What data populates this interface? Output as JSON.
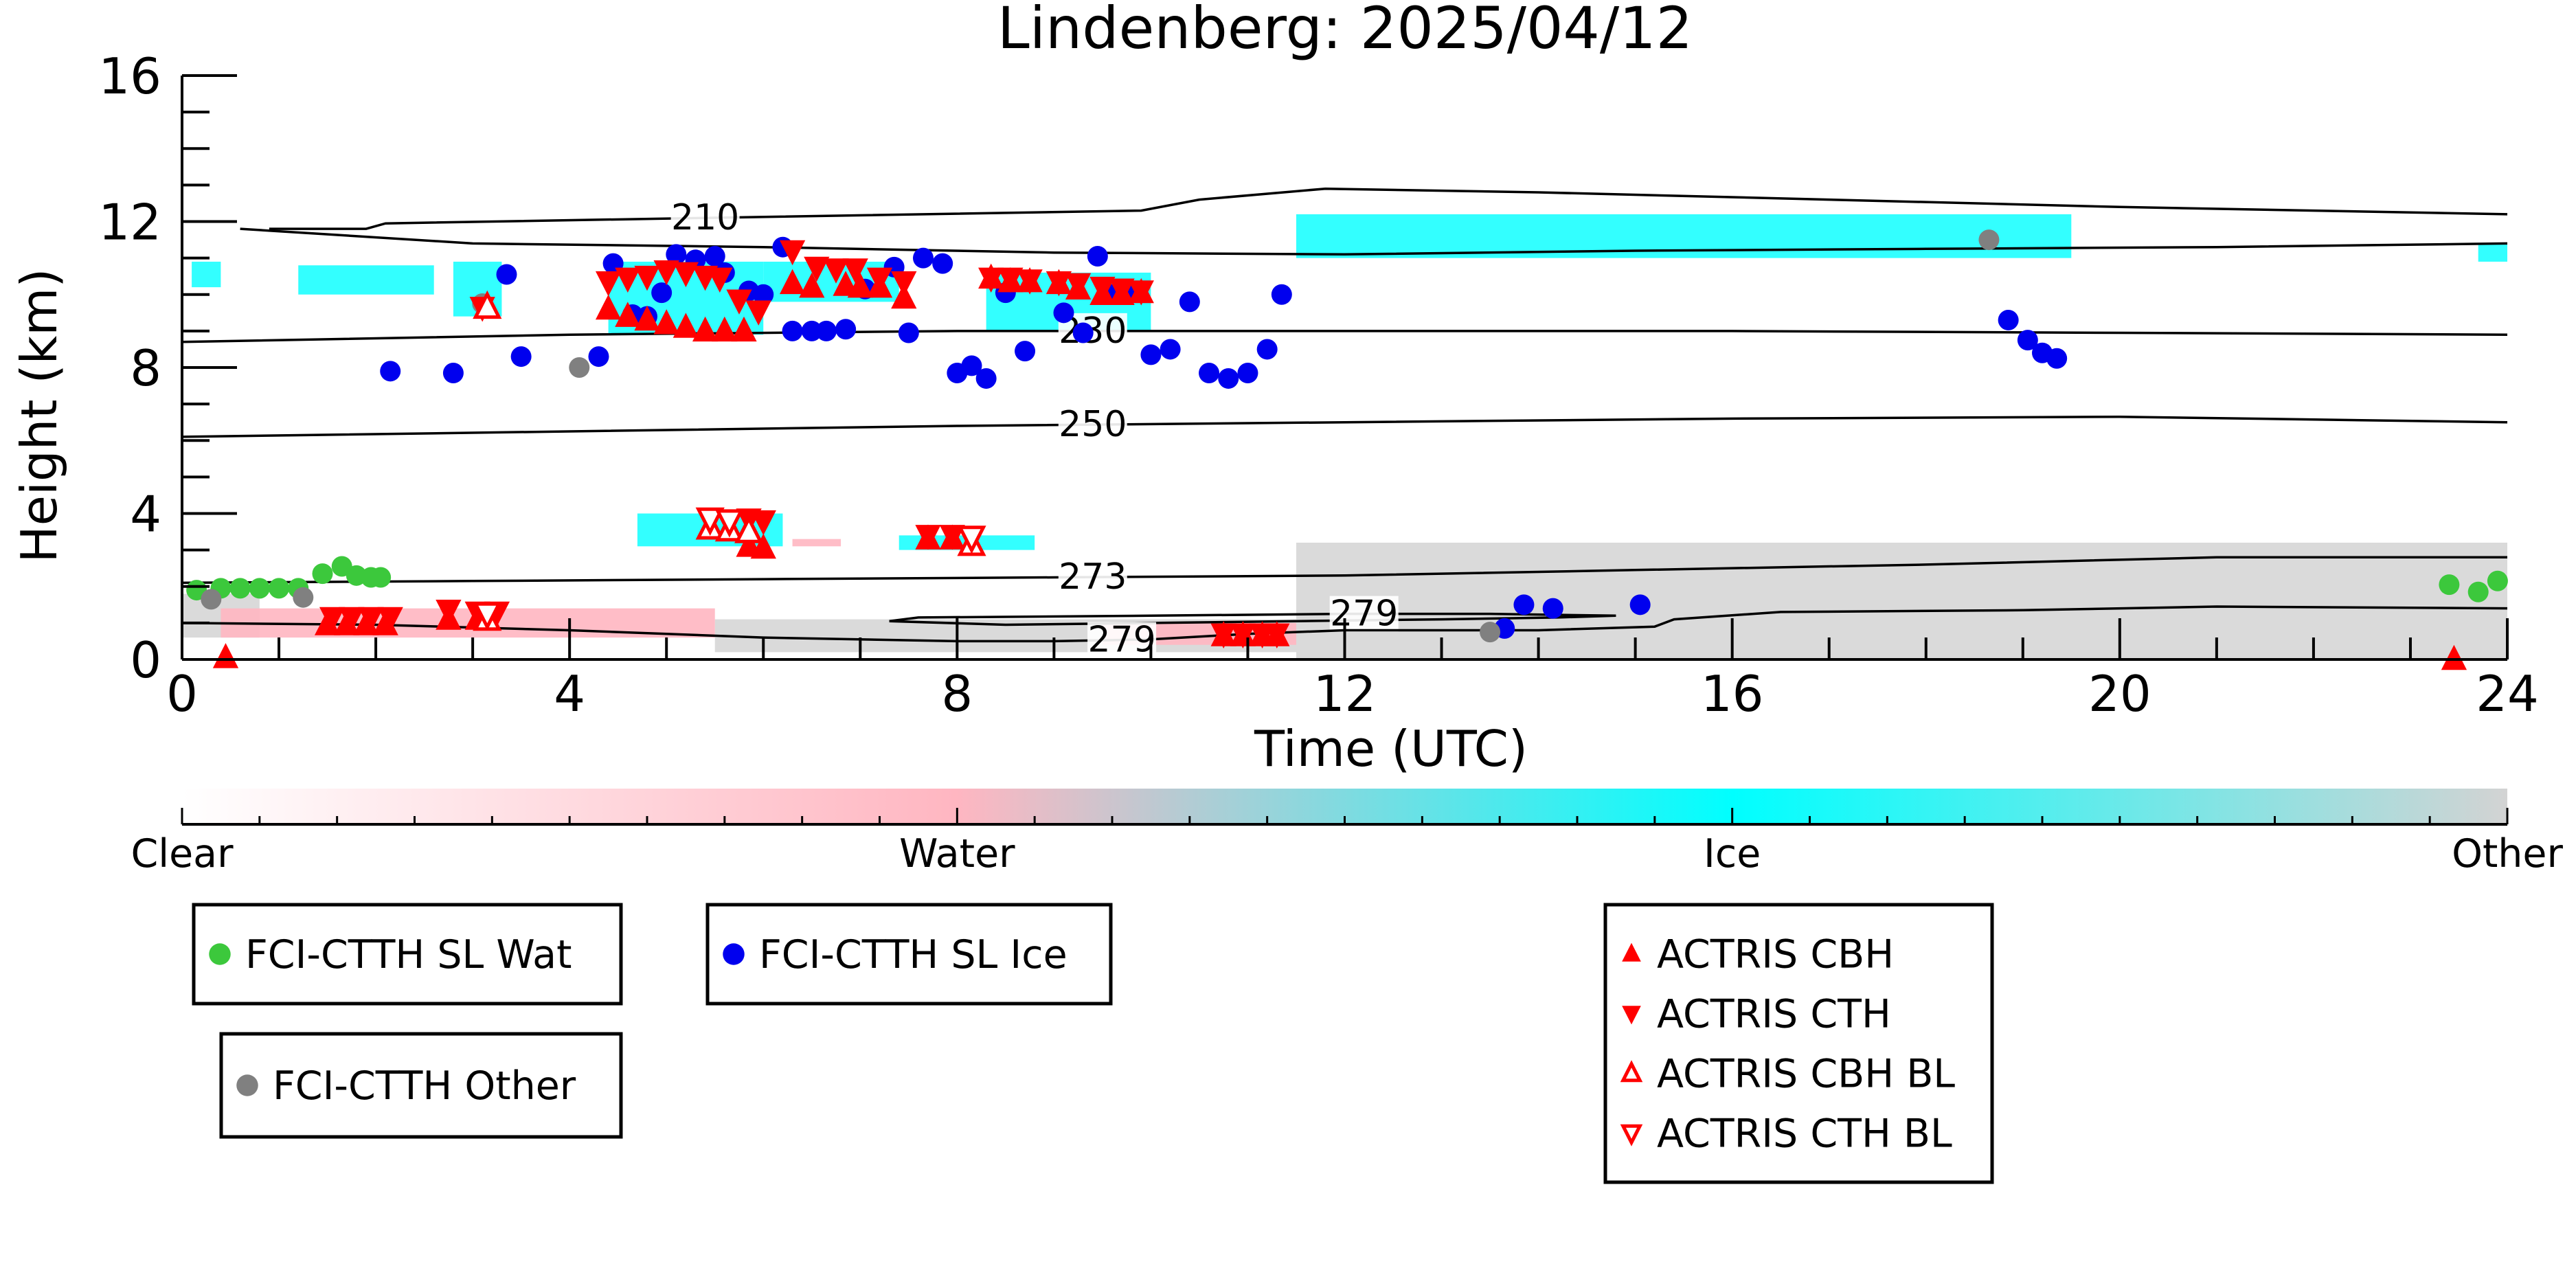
{
  "chart_data": {
    "type": "scatter",
    "title": "Lindenberg: 2025/04/12",
    "xlabel": "Time (UTC)",
    "ylabel": "Height (km)",
    "xlim": [
      0,
      24
    ],
    "ylim": [
      0,
      16
    ],
    "x_ticks": [
      "0",
      "4",
      "8",
      "12",
      "16",
      "20",
      "24"
    ],
    "y_ticks": [
      "0",
      "4",
      "8",
      "12",
      "16"
    ],
    "background": {
      "description_colors": {
        "water": "#ffb6c1",
        "ice": "#00ffff",
        "other": "#d3d3d3"
      },
      "ice_patches": [
        {
          "x0": 0.1,
          "x1": 0.4,
          "y0": 10.2,
          "y1": 10.9
        },
        {
          "x0": 1.2,
          "x1": 2.6,
          "y0": 10.0,
          "y1": 10.8
        },
        {
          "x0": 2.8,
          "x1": 3.3,
          "y0": 9.4,
          "y1": 10.9
        },
        {
          "x0": 4.4,
          "x1": 6.0,
          "y0": 8.9,
          "y1": 10.9
        },
        {
          "x0": 6.0,
          "x1": 7.4,
          "y0": 9.8,
          "y1": 10.9
        },
        {
          "x0": 8.3,
          "x1": 10.0,
          "y0": 9.0,
          "y1": 10.6
        },
        {
          "x0": 11.5,
          "x1": 19.5,
          "y0": 11.0,
          "y1": 12.2
        },
        {
          "x0": 23.7,
          "x1": 24.0,
          "y0": 10.9,
          "y1": 11.4
        },
        {
          "x0": 4.7,
          "x1": 6.2,
          "y0": 3.1,
          "y1": 4.0
        },
        {
          "x0": 7.4,
          "x1": 8.8,
          "y0": 3.0,
          "y1": 3.4
        }
      ],
      "water_patches": [
        {
          "x0": 0.4,
          "x1": 5.5,
          "y0": 0.6,
          "y1": 1.4
        },
        {
          "x0": 9.5,
          "x1": 11.5,
          "y0": 0.4,
          "y1": 1.0
        },
        {
          "x0": 6.3,
          "x1": 6.8,
          "y0": 3.1,
          "y1": 3.3
        }
      ],
      "other_patches": [
        {
          "x0": 11.5,
          "x1": 24.0,
          "y0": 0.0,
          "y1": 3.2
        },
        {
          "x0": 5.5,
          "x1": 11.5,
          "y0": 0.2,
          "y1": 1.1
        },
        {
          "x0": 0.0,
          "x1": 0.8,
          "y0": 0.6,
          "y1": 1.8
        }
      ]
    },
    "isotherms": [
      {
        "label": "210",
        "label_x": 5.4,
        "points": [
          [
            0.9,
            11.8
          ],
          [
            1.9,
            11.8
          ],
          [
            2.1,
            11.95
          ],
          [
            5.4,
            12.1
          ],
          [
            9.9,
            12.3
          ],
          [
            10.5,
            12.6
          ],
          [
            11.8,
            12.9
          ],
          [
            14,
            12.8
          ],
          [
            17,
            12.6
          ],
          [
            20,
            12.4
          ],
          [
            24,
            12.2
          ]
        ]
      },
      {
        "label": "",
        "points": [
          [
            0.6,
            11.8
          ],
          [
            3.0,
            11.4
          ],
          [
            6,
            11.3
          ],
          [
            9,
            11.15
          ],
          [
            12,
            11.1
          ],
          [
            15,
            11.2
          ],
          [
            18,
            11.25
          ],
          [
            21,
            11.3
          ],
          [
            24,
            11.4
          ]
        ]
      },
      {
        "label": "230",
        "label_x": 9.4,
        "points": [
          [
            0,
            8.7
          ],
          [
            4,
            8.9
          ],
          [
            8,
            9.0
          ],
          [
            12,
            9.0
          ],
          [
            16,
            9.0
          ],
          [
            20,
            8.95
          ],
          [
            24,
            8.9
          ]
        ]
      },
      {
        "label": "250",
        "label_x": 9.4,
        "points": [
          [
            0,
            6.1
          ],
          [
            4,
            6.25
          ],
          [
            8,
            6.4
          ],
          [
            12,
            6.5
          ],
          [
            16,
            6.6
          ],
          [
            20,
            6.65
          ],
          [
            24,
            6.5
          ]
        ]
      },
      {
        "label": "273",
        "label_x": 9.4,
        "points": [
          [
            0,
            2.1
          ],
          [
            3,
            2.15
          ],
          [
            6,
            2.2
          ],
          [
            9,
            2.25
          ],
          [
            12,
            2.3
          ],
          [
            15,
            2.45
          ],
          [
            18,
            2.6
          ],
          [
            21,
            2.8
          ],
          [
            24,
            2.8
          ]
        ]
      },
      {
        "label": "279",
        "label_x": 12.2,
        "points": [
          [
            7.3,
            1.05
          ],
          [
            7.6,
            1.15
          ],
          [
            10,
            1.2
          ],
          [
            12,
            1.25
          ],
          [
            13.5,
            1.25
          ],
          [
            14.8,
            1.2
          ],
          [
            14.2,
            1.15
          ],
          [
            13,
            1.1
          ],
          [
            11.5,
            1.05
          ],
          [
            10,
            1.0
          ],
          [
            8.5,
            0.95
          ],
          [
            7.3,
            1.05
          ]
        ]
      },
      {
        "label": "279",
        "label_x": 9.7,
        "points": [
          [
            0,
            1.0
          ],
          [
            2,
            0.95
          ],
          [
            4,
            0.8
          ],
          [
            6,
            0.6
          ],
          [
            8,
            0.5
          ],
          [
            9,
            0.5
          ],
          [
            10,
            0.55
          ],
          [
            11,
            0.7
          ],
          [
            12,
            0.8
          ],
          [
            14,
            0.8
          ],
          [
            15.2,
            0.9
          ],
          [
            15.4,
            1.1
          ],
          [
            16.5,
            1.3
          ],
          [
            19,
            1.35
          ],
          [
            21,
            1.45
          ],
          [
            24,
            1.4
          ]
        ]
      }
    ],
    "series": [
      {
        "name": "FCI-CTTH SL Wat",
        "marker": "circle",
        "color": "#3cc83c",
        "points": [
          [
            0.15,
            1.9
          ],
          [
            0.4,
            1.95
          ],
          [
            0.6,
            1.95
          ],
          [
            0.8,
            1.95
          ],
          [
            1.0,
            1.95
          ],
          [
            1.2,
            1.95
          ],
          [
            1.45,
            2.35
          ],
          [
            1.65,
            2.55
          ],
          [
            1.8,
            2.3
          ],
          [
            1.95,
            2.25
          ],
          [
            2.05,
            2.25
          ],
          [
            23.4,
            2.05
          ],
          [
            23.7,
            1.85
          ],
          [
            23.9,
            2.15
          ]
        ]
      },
      {
        "name": "FCI-CTTH SL Ice",
        "marker": "circle",
        "color": "#0000ee",
        "points": [
          [
            2.15,
            7.9
          ],
          [
            2.8,
            7.85
          ],
          [
            3.35,
            10.55
          ],
          [
            3.5,
            8.3
          ],
          [
            4.3,
            8.3
          ],
          [
            4.45,
            10.85
          ],
          [
            4.65,
            9.45
          ],
          [
            4.8,
            9.4
          ],
          [
            4.95,
            10.05
          ],
          [
            5.1,
            11.1
          ],
          [
            5.3,
            10.95
          ],
          [
            5.5,
            11.05
          ],
          [
            5.6,
            10.6
          ],
          [
            5.85,
            10.1
          ],
          [
            6.0,
            10.0
          ],
          [
            6.2,
            11.3
          ],
          [
            6.3,
            9.0
          ],
          [
            6.5,
            9.0
          ],
          [
            6.65,
            9.0
          ],
          [
            6.85,
            9.05
          ],
          [
            7.05,
            10.15
          ],
          [
            7.35,
            10.75
          ],
          [
            7.5,
            8.95
          ],
          [
            7.65,
            11.0
          ],
          [
            7.85,
            10.85
          ],
          [
            8.0,
            7.85
          ],
          [
            8.15,
            8.05
          ],
          [
            8.3,
            7.7
          ],
          [
            8.5,
            10.05
          ],
          [
            8.7,
            8.45
          ],
          [
            9.1,
            9.5
          ],
          [
            9.3,
            8.95
          ],
          [
            9.45,
            11.05
          ],
          [
            9.6,
            10.0
          ],
          [
            9.8,
            10.1
          ],
          [
            10.0,
            8.35
          ],
          [
            10.2,
            8.5
          ],
          [
            10.4,
            9.8
          ],
          [
            10.6,
            7.85
          ],
          [
            10.8,
            7.7
          ],
          [
            11.0,
            7.85
          ],
          [
            11.2,
            8.5
          ],
          [
            11.35,
            10.0
          ],
          [
            13.65,
            0.85
          ],
          [
            13.85,
            1.5
          ],
          [
            14.15,
            1.4
          ],
          [
            15.05,
            1.5
          ],
          [
            18.85,
            9.3
          ],
          [
            19.05,
            8.75
          ],
          [
            19.2,
            8.4
          ],
          [
            19.35,
            8.25
          ]
        ]
      },
      {
        "name": "FCI-CTTH Other",
        "marker": "circle",
        "color": "#808080",
        "points": [
          [
            0.3,
            1.65
          ],
          [
            1.25,
            1.7
          ],
          [
            3.1,
            9.75
          ],
          [
            4.1,
            8.0
          ],
          [
            13.5,
            0.75
          ],
          [
            18.65,
            11.5
          ]
        ]
      },
      {
        "name": "ACTRIS CBH",
        "marker": "triangle-up",
        "color": "#ff0000",
        "points": [
          [
            0.45,
            0.05
          ],
          [
            1.5,
            0.95
          ],
          [
            1.7,
            0.95
          ],
          [
            1.9,
            0.95
          ],
          [
            2.1,
            0.95
          ],
          [
            2.75,
            1.1
          ],
          [
            3.05,
            1.1
          ],
          [
            4.4,
            9.6
          ],
          [
            4.6,
            9.4
          ],
          [
            4.8,
            9.3
          ],
          [
            5.0,
            9.2
          ],
          [
            5.2,
            9.1
          ],
          [
            5.4,
            9.0
          ],
          [
            5.6,
            9.0
          ],
          [
            5.8,
            9.0
          ],
          [
            6.3,
            10.3
          ],
          [
            6.5,
            10.2
          ],
          [
            6.85,
            10.25
          ],
          [
            7.0,
            10.2
          ],
          [
            7.2,
            10.2
          ],
          [
            7.45,
            9.9
          ],
          [
            7.7,
            3.3
          ],
          [
            7.95,
            3.3
          ],
          [
            8.35,
            10.45
          ],
          [
            8.55,
            10.35
          ],
          [
            8.75,
            10.35
          ],
          [
            9.05,
            10.3
          ],
          [
            9.25,
            10.15
          ],
          [
            9.5,
            10.0
          ],
          [
            9.7,
            10.0
          ],
          [
            9.9,
            10.05
          ],
          [
            10.75,
            0.65
          ],
          [
            10.95,
            0.65
          ],
          [
            11.15,
            0.65
          ],
          [
            11.3,
            0.65
          ],
          [
            23.45,
            0.0
          ],
          [
            5.85,
            3.1
          ],
          [
            6.0,
            3.05
          ]
        ]
      },
      {
        "name": "ACTRIS CTH",
        "marker": "triangle-down",
        "color": "#ff0000",
        "points": [
          [
            1.55,
            1.15
          ],
          [
            1.75,
            1.15
          ],
          [
            1.95,
            1.15
          ],
          [
            2.15,
            1.15
          ],
          [
            2.75,
            1.35
          ],
          [
            3.05,
            1.3
          ],
          [
            3.25,
            1.3
          ],
          [
            3.1,
            9.65
          ],
          [
            4.4,
            10.35
          ],
          [
            4.6,
            10.45
          ],
          [
            4.8,
            10.5
          ],
          [
            5.0,
            10.65
          ],
          [
            5.2,
            10.6
          ],
          [
            5.4,
            10.5
          ],
          [
            5.55,
            10.45
          ],
          [
            5.75,
            9.85
          ],
          [
            5.95,
            9.55
          ],
          [
            6.3,
            11.2
          ],
          [
            6.55,
            10.75
          ],
          [
            6.75,
            10.7
          ],
          [
            6.95,
            10.7
          ],
          [
            7.2,
            10.45
          ],
          [
            7.45,
            10.35
          ],
          [
            7.7,
            3.4
          ],
          [
            7.95,
            3.4
          ],
          [
            8.35,
            10.45
          ],
          [
            8.55,
            10.45
          ],
          [
            8.75,
            10.4
          ],
          [
            9.05,
            10.35
          ],
          [
            9.25,
            10.3
          ],
          [
            9.5,
            10.2
          ],
          [
            9.7,
            10.15
          ],
          [
            9.9,
            10.1
          ],
          [
            10.75,
            0.7
          ],
          [
            10.95,
            0.7
          ],
          [
            11.15,
            0.7
          ],
          [
            11.3,
            0.7
          ],
          [
            5.85,
            3.85
          ],
          [
            6.0,
            3.8
          ]
        ]
      },
      {
        "name": "ACTRIS CBH BL",
        "marker": "triangle-up-open",
        "color": "#ff0000",
        "points": [
          [
            3.15,
            1.1
          ],
          [
            3.15,
            9.65
          ],
          [
            5.45,
            3.6
          ],
          [
            5.65,
            3.55
          ],
          [
            5.85,
            3.5
          ],
          [
            8.15,
            3.15
          ]
        ]
      },
      {
        "name": "ACTRIS CTH BL",
        "marker": "triangle-down-open",
        "color": "#ff0000",
        "points": [
          [
            3.15,
            1.25
          ],
          [
            5.45,
            3.85
          ],
          [
            5.65,
            3.8
          ],
          [
            8.15,
            3.35
          ]
        ]
      }
    ],
    "colorbar": {
      "labels": [
        "Clear",
        "Water",
        "Ice",
        "Other"
      ],
      "colors": [
        "#ffffff",
        "#ffb6c1",
        "#00ffff",
        "#d3d3d3"
      ]
    },
    "legends": [
      {
        "entries": [
          "FCI-CTTH SL Wat"
        ]
      },
      {
        "entries": [
          "FCI-CTTH SL Ice"
        ]
      },
      {
        "entries": [
          "FCI-CTTH Other"
        ]
      },
      {
        "entries": [
          "ACTRIS CBH",
          "ACTRIS CTH",
          "ACTRIS CBH BL",
          "ACTRIS CTH BL"
        ]
      }
    ]
  }
}
